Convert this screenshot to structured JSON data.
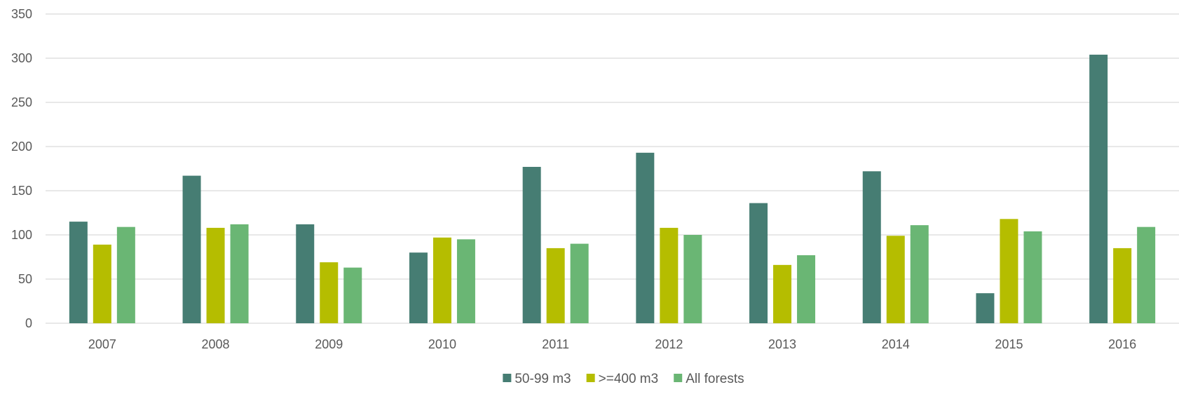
{
  "chart_data": {
    "type": "bar",
    "title": "",
    "xlabel": "",
    "ylabel": "",
    "categories": [
      "2007",
      "2008",
      "2009",
      "2010",
      "2011",
      "2012",
      "2013",
      "2014",
      "2015",
      "2016"
    ],
    "series": [
      {
        "name": "50-99 m3",
        "color": "#467d73",
        "values": [
          115,
          167,
          112,
          80,
          177,
          193,
          136,
          172,
          34,
          304
        ]
      },
      {
        "name": ">=400 m3",
        "color": "#b5bd00",
        "values": [
          89,
          108,
          69,
          97,
          85,
          108,
          66,
          99,
          118,
          85
        ]
      },
      {
        "name": "All forests",
        "color": "#6ab674",
        "values": [
          109,
          112,
          63,
          95,
          90,
          100,
          77,
          111,
          104,
          109
        ]
      }
    ],
    "ylim": [
      0,
      350
    ],
    "yticks": [
      "0",
      "50",
      "100",
      "150",
      "200",
      "250",
      "300",
      "350"
    ],
    "grid": true,
    "legend_position": "bottom-center"
  },
  "colors": {
    "gridline": "#d9d9d9",
    "text": "#595959"
  }
}
